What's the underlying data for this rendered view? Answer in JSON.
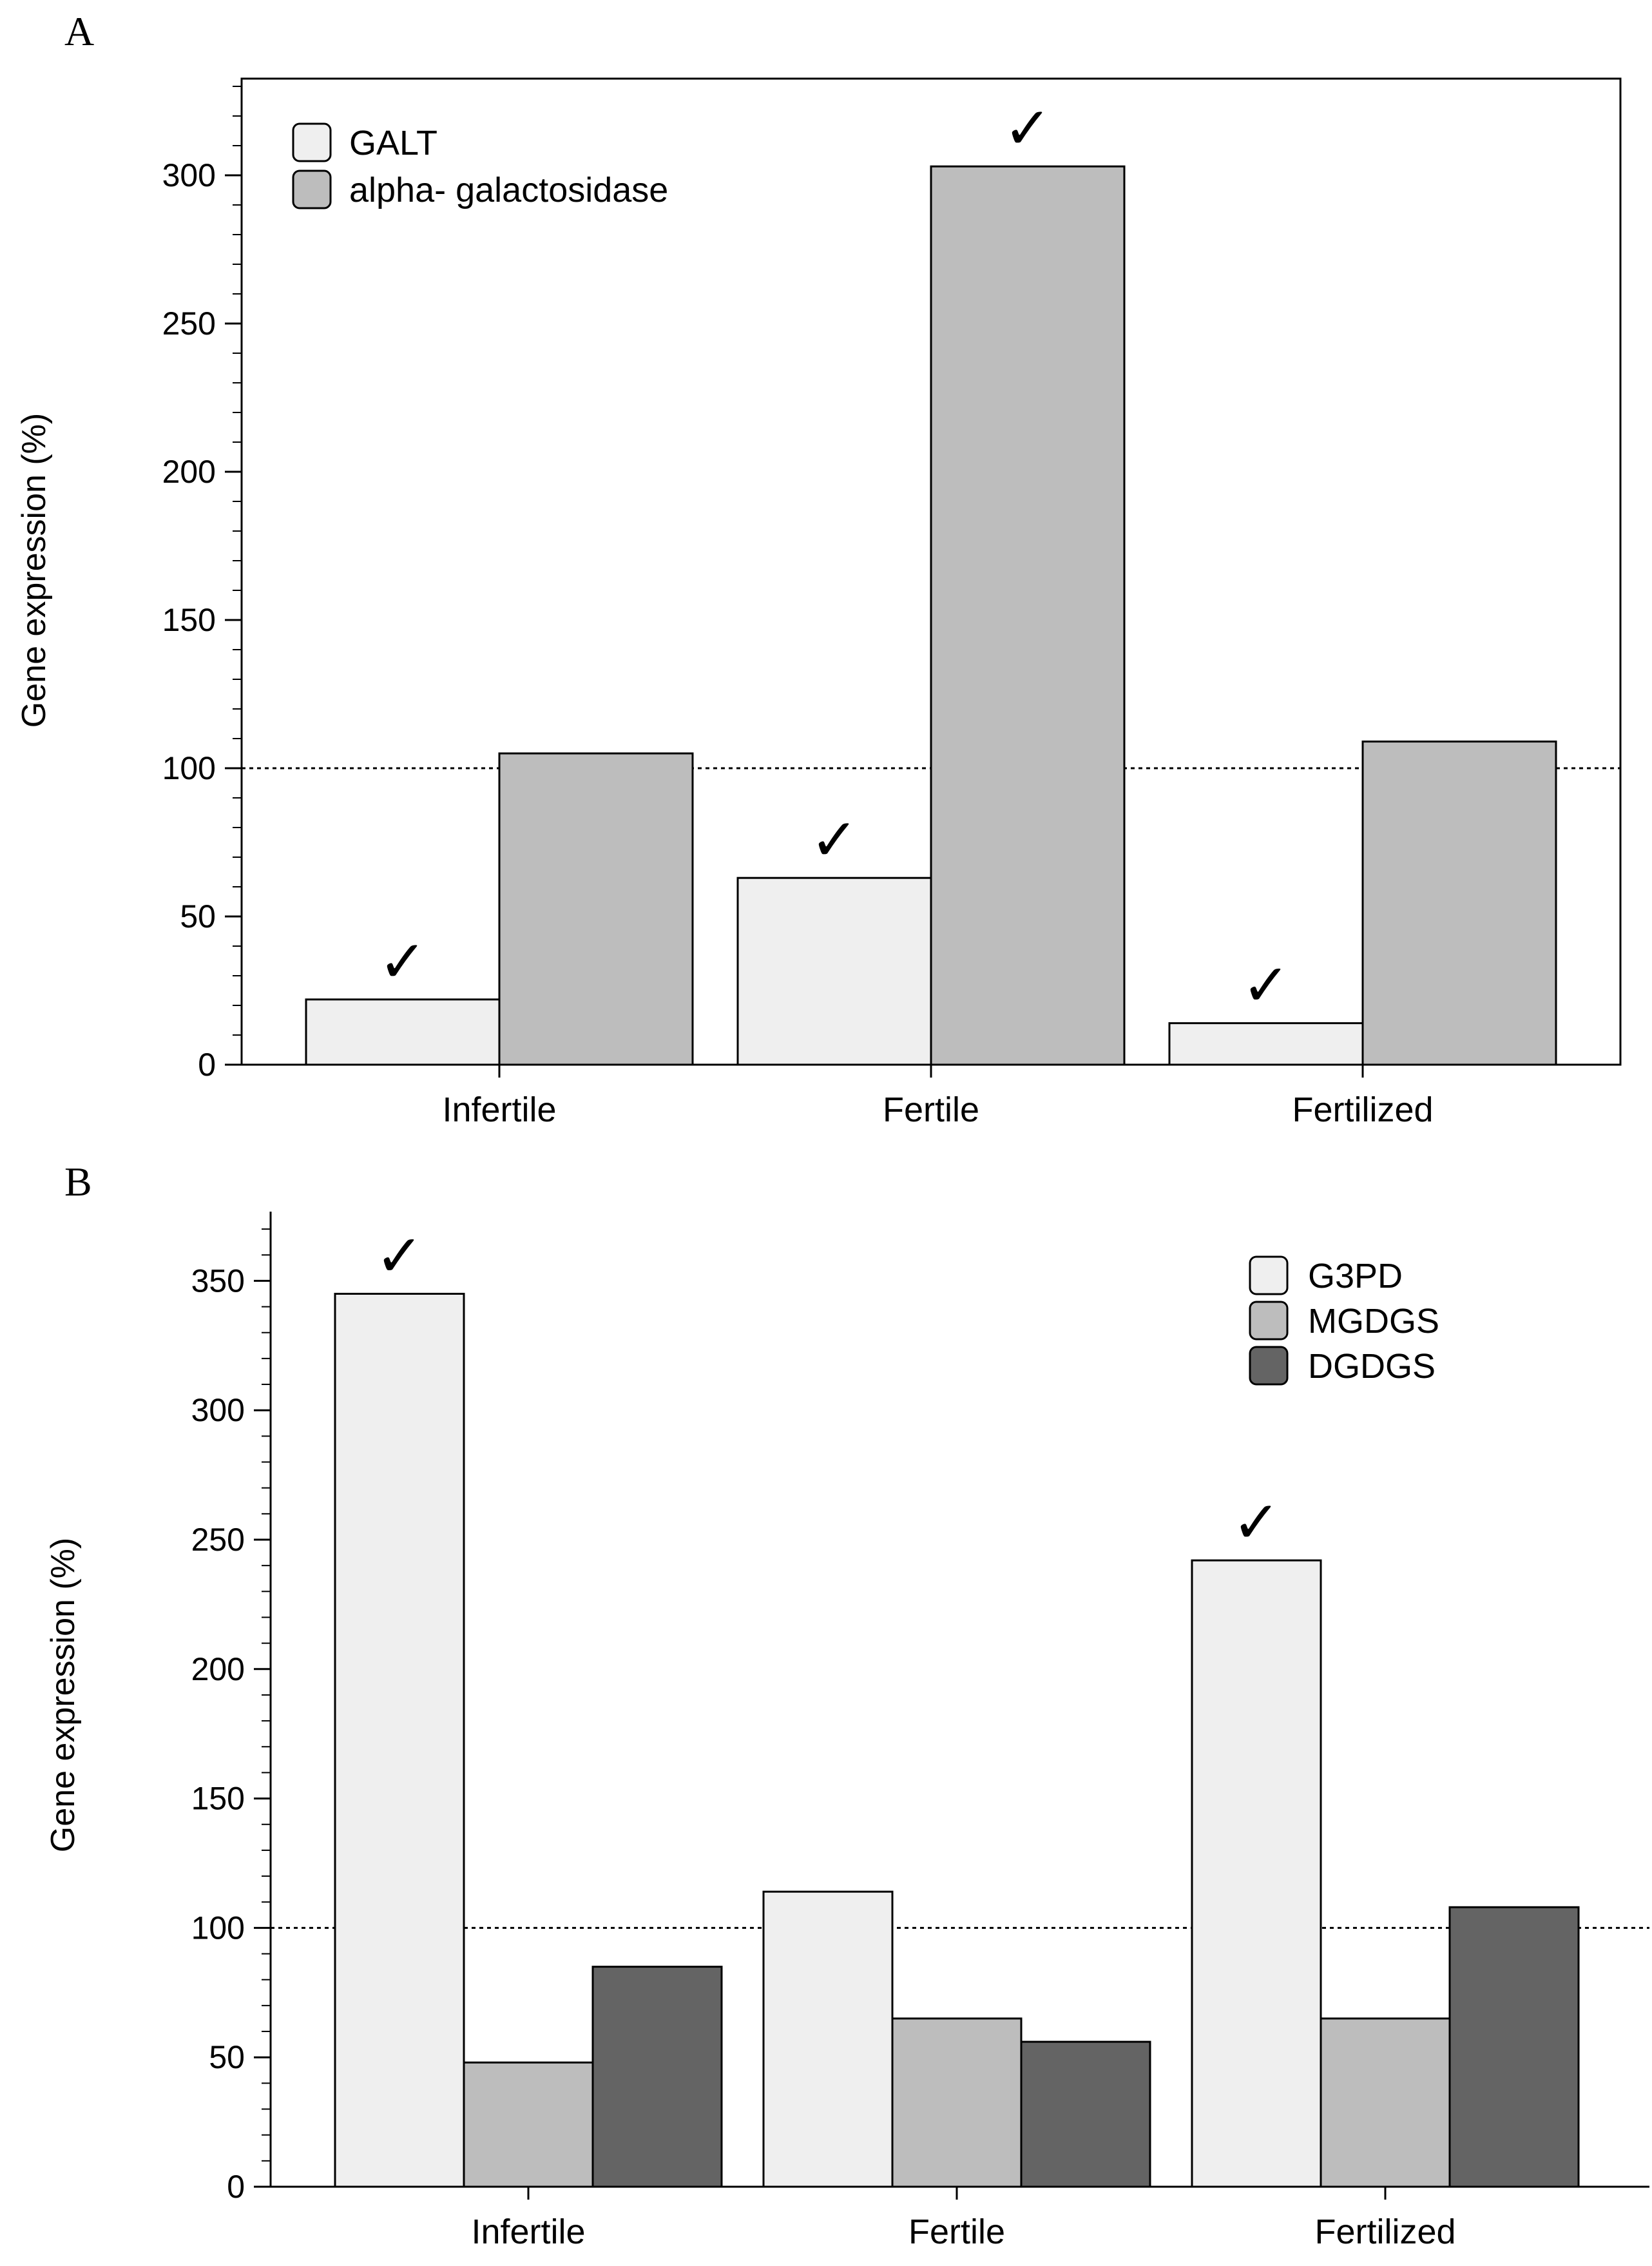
{
  "chart_data": [
    {
      "panel_label": "A",
      "type": "bar",
      "categories": [
        "Infertile",
        "Fertile",
        "Fertilized"
      ],
      "ylabel": "Gene expression  (%)",
      "ylim": [
        0,
        330
      ],
      "yticks": [
        0,
        50,
        100,
        150,
        200,
        250,
        300
      ],
      "ymajor_step": 50,
      "yminor_step": 10,
      "reference_line": 100,
      "legend_position": "top-left",
      "series": [
        {
          "name": "GALT",
          "color": "#efefef",
          "values": [
            22,
            63,
            14
          ],
          "marked": [
            true,
            true,
            true
          ]
        },
        {
          "name": "alpha- galactosidase",
          "color": "#bdbdbd",
          "values": [
            105,
            303,
            109
          ],
          "marked": [
            false,
            true,
            false
          ]
        }
      ],
      "marker_symbol": "✓"
    },
    {
      "panel_label": "B",
      "type": "bar",
      "categories": [
        "Infertile",
        "Fertile",
        "Fertilized"
      ],
      "ylabel": "Gene expression (%)",
      "ylim": [
        0,
        375
      ],
      "yticks": [
        0,
        50,
        100,
        150,
        200,
        250,
        300,
        350
      ],
      "ymajor_step": 50,
      "yminor_step": 10,
      "reference_line": 100,
      "legend_position": "top-right",
      "series": [
        {
          "name": "G3PD",
          "color": "#efefef",
          "values": [
            345,
            114,
            242
          ],
          "marked": [
            true,
            false,
            true
          ]
        },
        {
          "name": "MGDGS",
          "color": "#bdbdbd",
          "values": [
            48,
            65,
            65
          ],
          "marked": [
            false,
            false,
            false
          ]
        },
        {
          "name": "DGDGS",
          "color": "#646464",
          "values": [
            85,
            56,
            108
          ],
          "marked": [
            false,
            false,
            false
          ]
        }
      ],
      "marker_symbol": "✓"
    }
  ]
}
